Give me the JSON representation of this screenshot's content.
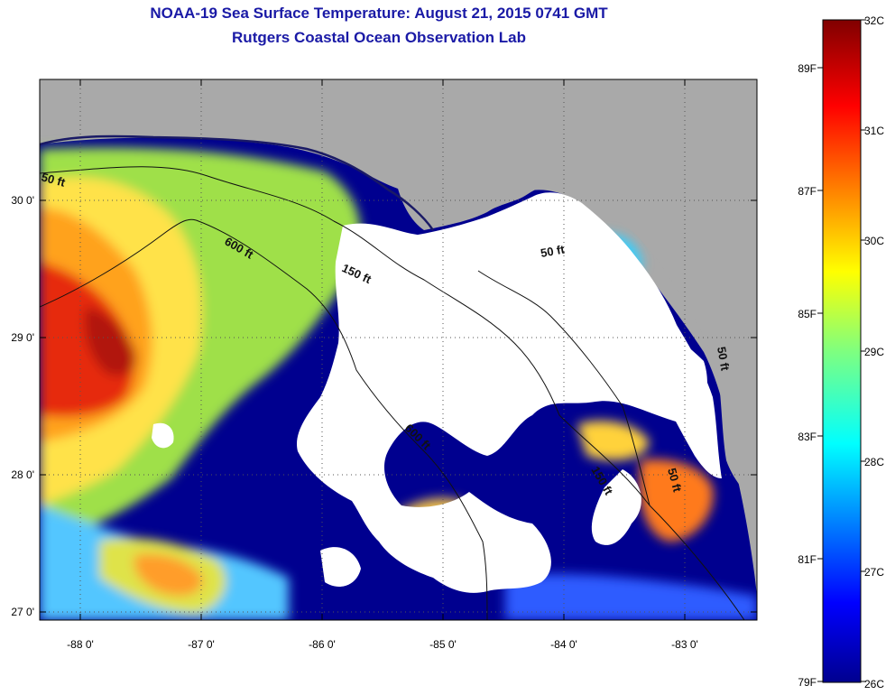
{
  "header": {
    "title": "NOAA-19 Sea Surface Temperature:  August 21, 2015 0741 GMT",
    "subtitle": "Rutgers Coastal Ocean Observation Lab"
  },
  "map": {
    "lon_range": [
      -88.33,
      -82.47
    ],
    "lat_range": [
      26.97,
      30.85
    ],
    "lon_ticks": [
      {
        "value": -88,
        "label": "-88 0'"
      },
      {
        "value": -87,
        "label": "-87 0'"
      },
      {
        "value": -86,
        "label": "-86 0'"
      },
      {
        "value": -85,
        "label": "-85 0'"
      },
      {
        "value": -84,
        "label": "-84 0'"
      },
      {
        "value": -83,
        "label": "-83 0'"
      }
    ],
    "lat_ticks": [
      {
        "value": 30,
        "label": "30 0'"
      },
      {
        "value": 29,
        "label": "29 0'"
      },
      {
        "value": 28,
        "label": "28 0'"
      },
      {
        "value": 27,
        "label": "27 0'"
      }
    ],
    "contour_labels": [
      "50 ft",
      "600 ft",
      "150 ft",
      "50 ft",
      "600 ft",
      "150 ft",
      "50 ft",
      "50 ft"
    ],
    "colors": {
      "land": "#a9a9a9",
      "cloud": "#ffffff",
      "grid": "#555555"
    }
  },
  "colorbar": {
    "celsius": [
      "32C",
      "31C",
      "30C",
      "29C",
      "28C",
      "27C",
      "26C"
    ],
    "fahrenheit": [
      "89F",
      "87F",
      "85F",
      "83F",
      "81F",
      "79F"
    ]
  }
}
